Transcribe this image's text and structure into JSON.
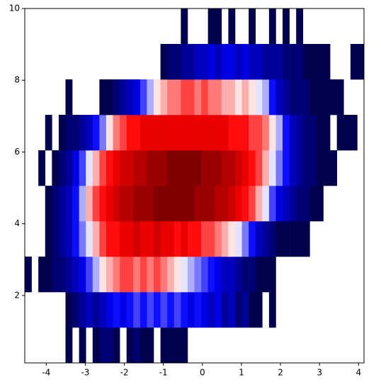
{
  "chart_data": {
    "type": "hist2d",
    "colormap": "seismic",
    "cmin": 1,
    "xlim": [
      -4.55,
      4.14
    ],
    "ylim": [
      0.12,
      10
    ],
    "xticks": [
      -4,
      -3,
      -2,
      -1,
      0,
      1,
      2,
      3,
      4
    ],
    "yticks": [
      2,
      4,
      6,
      8,
      10
    ],
    "xbins": [
      -4.55,
      -4.3762,
      -4.2024,
      -4.0286,
      -3.8548,
      -3.681,
      -3.5072,
      -3.3334,
      -3.1596,
      -2.9858,
      -2.812,
      -2.6382,
      -2.4644,
      -2.2906,
      -2.1168,
      -1.943,
      -1.7692,
      -1.5954,
      -1.4216,
      -1.2478,
      -1.074,
      -0.9002,
      -0.7264,
      -0.5526,
      -0.3788,
      -0.205,
      -0.0312,
      0.1426,
      0.3164,
      0.4902,
      0.664,
      0.8378,
      1.0116,
      1.1854,
      1.3592,
      1.533,
      1.7068,
      1.8806,
      2.0544,
      2.2282,
      2.402,
      2.5758,
      2.7496,
      2.9234,
      3.0972,
      3.271,
      3.4448,
      3.6186,
      3.7924,
      3.9662,
      4.14
    ],
    "ybins": [
      0.12,
      1.108,
      2.096,
      3.084,
      4.072,
      5.06,
      6.048,
      7.036,
      8.024,
      9.012,
      10
    ],
    "counts": [
      [
        0,
        0,
        0,
        0,
        0,
        0,
        1,
        0,
        1,
        0,
        1,
        2,
        2,
        1,
        0,
        1,
        2,
        1,
        1,
        0,
        1,
        1,
        1,
        1,
        0,
        0,
        0,
        0,
        0,
        0,
        0,
        0,
        0,
        0,
        0,
        0,
        0,
        0,
        0,
        0,
        0,
        0,
        0,
        0,
        0,
        0,
        0,
        0,
        0,
        0
      ],
      [
        0,
        0,
        0,
        0,
        0,
        0,
        1,
        2,
        3,
        4,
        3,
        4,
        5,
        6,
        5,
        6,
        7,
        6,
        7,
        6,
        7,
        6,
        7,
        6,
        5,
        6,
        5,
        4,
        5,
        3,
        4,
        2,
        3,
        1,
        1,
        0,
        1,
        0,
        0,
        0,
        0,
        0,
        0,
        0,
        0,
        0,
        0,
        0,
        0,
        0
      ],
      [
        1,
        0,
        1,
        1,
        2,
        2,
        3,
        4,
        5,
        7,
        9,
        11,
        12,
        13,
        14,
        14,
        13,
        14,
        13,
        14,
        13,
        12,
        11,
        10,
        9,
        8,
        7,
        6,
        5,
        4,
        4,
        3,
        2,
        2,
        1,
        1,
        1,
        0,
        0,
        0,
        0,
        0,
        0,
        0,
        0,
        0,
        0,
        0,
        0,
        0
      ],
      [
        0,
        0,
        0,
        1,
        2,
        3,
        4,
        6,
        8,
        10,
        12,
        14,
        15,
        15,
        16,
        16,
        17,
        16,
        16,
        17,
        16,
        16,
        15,
        16,
        15,
        15,
        14,
        14,
        13,
        12,
        11,
        10,
        8,
        6,
        4,
        3,
        2,
        1,
        1,
        1,
        1,
        1,
        0,
        0,
        0,
        0,
        0,
        0,
        0,
        0
      ],
      [
        0,
        0,
        0,
        1,
        2,
        3,
        4,
        6,
        9,
        12,
        14,
        15,
        16,
        17,
        18,
        18,
        19,
        19,
        19,
        20,
        20,
        20,
        20,
        20,
        20,
        19,
        19,
        19,
        18,
        18,
        17,
        16,
        15,
        14,
        12,
        10,
        7,
        5,
        4,
        3,
        2,
        2,
        1,
        1,
        0,
        0,
        0,
        0,
        0,
        0
      ],
      [
        0,
        0,
        1,
        0,
        1,
        2,
        3,
        5,
        7,
        10,
        12,
        14,
        15,
        16,
        17,
        17,
        18,
        18,
        19,
        19,
        19,
        20,
        20,
        20,
        20,
        20,
        19,
        19,
        19,
        18,
        18,
        17,
        16,
        15,
        14,
        12,
        10,
        8,
        6,
        4,
        3,
        2,
        2,
        1,
        1,
        1,
        0,
        0,
        0,
        0
      ],
      [
        0,
        0,
        0,
        1,
        0,
        1,
        2,
        2,
        3,
        4,
        6,
        8,
        11,
        13,
        14,
        15,
        15,
        16,
        16,
        16,
        16,
        16,
        16,
        16,
        16,
        16,
        16,
        16,
        16,
        16,
        15,
        15,
        15,
        14,
        14,
        13,
        11,
        9,
        6,
        4,
        3,
        2,
        2,
        1,
        1,
        0,
        1,
        1,
        1,
        0
      ],
      [
        0,
        0,
        0,
        0,
        0,
        0,
        1,
        0,
        0,
        0,
        0,
        1,
        1,
        2,
        3,
        4,
        5,
        7,
        9,
        11,
        12,
        13,
        13,
        14,
        14,
        13,
        14,
        13,
        13,
        12,
        12,
        11,
        12,
        11,
        10,
        9,
        6,
        4,
        3,
        2,
        2,
        2,
        1,
        1,
        1,
        1,
        1,
        0,
        0,
        0
      ],
      [
        0,
        0,
        0,
        0,
        0,
        0,
        0,
        0,
        0,
        0,
        0,
        0,
        0,
        0,
        0,
        0,
        0,
        0,
        0,
        0,
        1,
        2,
        2,
        3,
        3,
        4,
        4,
        5,
        4,
        5,
        5,
        4,
        5,
        4,
        4,
        3,
        3,
        3,
        2,
        2,
        2,
        1,
        1,
        1,
        1,
        0,
        0,
        0,
        1,
        1
      ],
      [
        0,
        0,
        0,
        0,
        0,
        0,
        0,
        0,
        0,
        0,
        0,
        0,
        0,
        0,
        0,
        0,
        0,
        0,
        0,
        0,
        0,
        0,
        0,
        1,
        0,
        0,
        0,
        1,
        1,
        0,
        1,
        0,
        0,
        1,
        0,
        0,
        1,
        0,
        1,
        0,
        1,
        0,
        0,
        0,
        0,
        0,
        0,
        0,
        0,
        0
      ]
    ]
  }
}
